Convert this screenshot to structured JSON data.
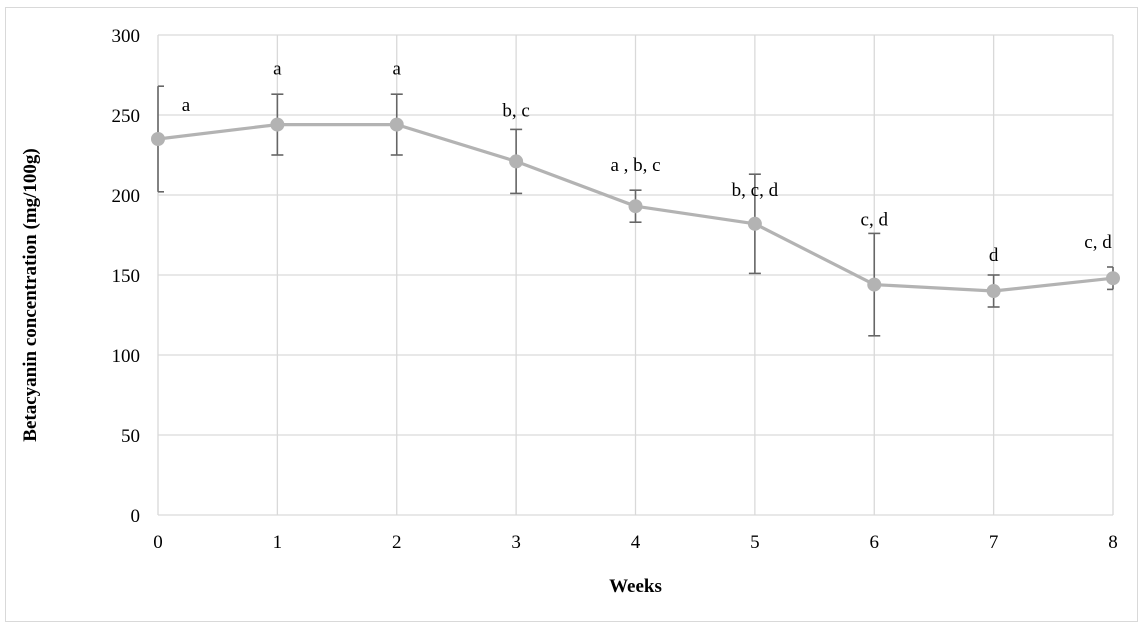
{
  "chart_data": {
    "type": "line",
    "xlabel": "Weeks",
    "ylabel": "Betacyanin concentration  (mg/100g)",
    "xlim": [
      0,
      8
    ],
    "ylim": [
      0,
      300
    ],
    "x_ticks": [
      "0",
      "1",
      "2",
      "3",
      "4",
      "5",
      "6",
      "7",
      "8"
    ],
    "y_ticks": [
      "0",
      "50",
      "100",
      "150",
      "200",
      "250",
      "300"
    ],
    "grid": true,
    "x": [
      0,
      1,
      2,
      3,
      4,
      5,
      6,
      7,
      8
    ],
    "series": [
      {
        "values": [
          235,
          244,
          244,
          221,
          193,
          182,
          144,
          140,
          148
        ],
        "error": [
          33,
          19,
          19,
          20,
          10,
          31,
          32,
          10,
          7
        ],
        "significance_labels": [
          "a",
          "a",
          "a",
          "b, c",
          "a , b, c",
          "b, c, d",
          "c, d",
          "d",
          "c, d"
        ]
      }
    ],
    "colors": {
      "line": "#b3b3b3",
      "marker": "#b3b3b3",
      "error_bar": "#666666",
      "grid": "#d9d9d9"
    }
  }
}
